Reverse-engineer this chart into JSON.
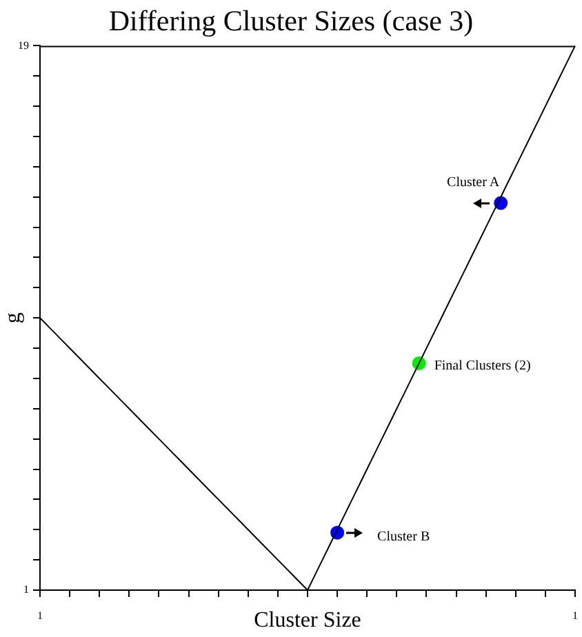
{
  "chart_data": {
    "type": "line",
    "title": "Differing Cluster Sizes (case 3)",
    "xlabel": "Cluster Size",
    "ylabel": "g",
    "categories": [
      "1",
      null,
      null,
      null,
      null,
      null,
      null,
      null,
      null,
      null,
      null,
      null,
      null,
      null,
      null,
      null,
      null,
      null,
      null,
      null,
      null,
      null,
      null,
      null,
      null,
      null,
      null,
      null,
      null,
      null,
      null,
      null,
      null,
      null,
      null,
      null,
      null,
      null,
      null,
      null,
      null,
      null,
      null,
      null,
      null,
      null,
      null,
      null,
      null,
      null,
      null,
      null,
      null,
      null,
      null,
      null,
      null,
      null,
      null,
      null,
      null,
      null,
      null,
      null,
      null,
      null,
      null,
      null,
      null,
      null,
      null,
      null,
      "1"
    ],
    "ylim": [
      1,
      19
    ],
    "yticks": [
      1,
      {
        "value": 2,
        "label": null
      },
      {
        "value": 3,
        "label": null
      },
      {
        "value": 4,
        "label": null
      },
      {
        "value": 5,
        "label": null
      },
      {
        "value": 6,
        "label": null
      },
      {
        "value": 7,
        "label": null
      },
      {
        "value": 8,
        "label": null
      },
      {
        "value": 9,
        "label": null
      },
      {
        "value": 10,
        "label": null
      },
      {
        "value": 11,
        "label": null
      },
      {
        "value": 12,
        "label": null
      },
      {
        "value": 13,
        "label": null
      },
      {
        "value": 14,
        "label": null
      },
      {
        "value": 15,
        "label": null
      },
      {
        "value": 16,
        "label": null
      },
      {
        "value": 17,
        "label": null
      },
      {
        "value": 18,
        "label": null
      },
      19
    ],
    "series": [
      {
        "color": "#000000",
        "marker": "none",
        "values": [
          10,
          9.75,
          9.5,
          9.25,
          9,
          8.75,
          8.5,
          8.25,
          8,
          7.75,
          7.5,
          7.25,
          7,
          6.75,
          6.5,
          6.25,
          6,
          5.75,
          5.5,
          5.25,
          5,
          4.75,
          4.5,
          4.25,
          4,
          3.75,
          3.5,
          3.25,
          3,
          2.75,
          2.5,
          2.25,
          2,
          1.75,
          1.5,
          1.25,
          1,
          1.5,
          2,
          2.5,
          3,
          3.5,
          4,
          4.5,
          5,
          5.5,
          6,
          6.5,
          7,
          7.5,
          8,
          8.5,
          9,
          9.5,
          10,
          10.5,
          11,
          11.5,
          12,
          12.5,
          13,
          13.5,
          14,
          14.5,
          15,
          15.5,
          16,
          16.5,
          17,
          17.5,
          18,
          18.5,
          19
        ]
      },
      {
        "type": "scatter",
        "name": "Cluster A",
        "color": "#0000ff",
        "marker": "circle",
        "values": [
          null,
          null,
          null,
          null,
          null,
          null,
          null,
          null,
          null,
          null,
          null,
          null,
          null,
          null,
          null,
          null,
          null,
          null,
          null,
          null,
          null,
          null,
          null,
          null,
          null,
          null,
          null,
          null,
          null,
          null,
          null,
          null,
          null,
          null,
          null,
          null,
          null,
          null,
          null,
          null,
          null,
          null,
          null,
          null,
          null,
          null,
          null,
          null,
          null,
          null,
          null,
          null,
          null,
          null,
          null,
          null,
          null,
          null,
          null,
          null,
          null,
          null,
          13.8,
          null,
          null,
          null,
          null,
          null,
          null,
          null,
          null,
          null,
          null
        ]
      },
      {
        "type": "scatter",
        "name": "Final Clusters (2)",
        "color": "#00ee00",
        "marker": "circle",
        "values": [
          null,
          null,
          null,
          null,
          null,
          null,
          null,
          null,
          null,
          null,
          null,
          null,
          null,
          null,
          null,
          null,
          null,
          null,
          null,
          null,
          null,
          null,
          null,
          null,
          null,
          null,
          null,
          null,
          null,
          null,
          null,
          null,
          null,
          null,
          null,
          null,
          null,
          null,
          null,
          null,
          null,
          null,
          null,
          null,
          null,
          null,
          null,
          null,
          null,
          null,
          null,
          8.5,
          null,
          null,
          null,
          null,
          null,
          null,
          null,
          null,
          null,
          null,
          null,
          null,
          null,
          null,
          null,
          null,
          null,
          null,
          null,
          null,
          null
        ]
      },
      {
        "type": "scatter",
        "name": "Cluster B",
        "color": "#0000ff",
        "marker": "circle",
        "values": [
          null,
          null,
          null,
          null,
          null,
          null,
          null,
          null,
          null,
          null,
          null,
          null,
          null,
          null,
          null,
          null,
          null,
          null,
          null,
          null,
          null,
          null,
          null,
          null,
          null,
          null,
          null,
          null,
          null,
          null,
          null,
          null,
          null,
          null,
          null,
          null,
          null,
          null,
          null,
          null,
          2.9,
          null,
          null,
          null,
          null,
          null,
          null,
          null,
          null,
          null,
          null,
          null,
          null,
          null,
          null,
          null,
          null,
          null,
          null,
          null,
          null,
          null,
          null,
          null,
          null,
          null,
          null,
          null,
          null,
          null,
          null,
          null,
          null
        ]
      }
    ]
  }
}
